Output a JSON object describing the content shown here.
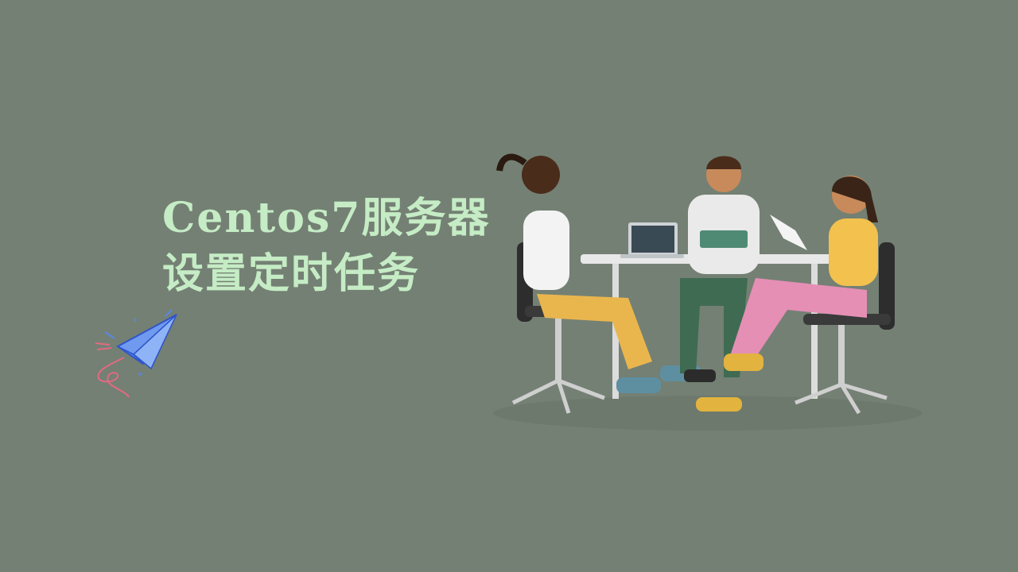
{
  "title": {
    "line1": "Centos7服务器",
    "line2": "设置定时任务"
  },
  "colors": {
    "background": "#748074",
    "title_text": "#c5ecc5"
  },
  "illustrations": {
    "plane": "paper-plane-icon",
    "scene": "team-meeting-illustration"
  }
}
